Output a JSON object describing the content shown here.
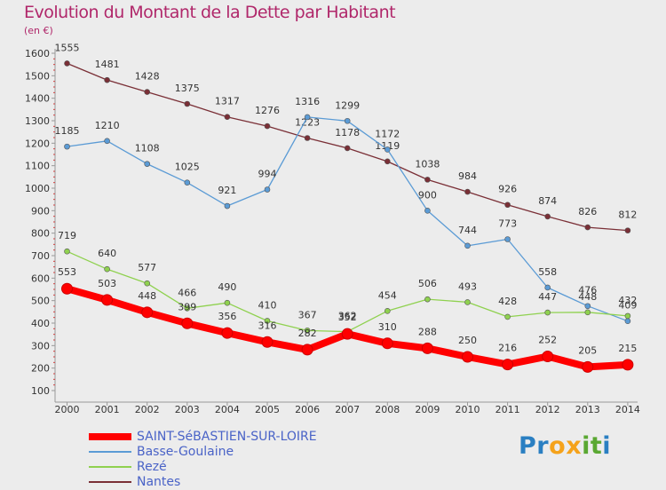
{
  "title": "Evolution du Montant de la Dette par Habitant",
  "unit_label": "(en €)",
  "logo": {
    "text": "Proxiti",
    "letters": [
      {
        "ch": "P",
        "color": "#2a7fc2"
      },
      {
        "ch": "r",
        "color": "#2a7fc2"
      },
      {
        "ch": "o",
        "color": "#f5a21a"
      },
      {
        "ch": "x",
        "color": "#f5a21a"
      },
      {
        "ch": "i",
        "color": "#5aa832"
      },
      {
        "ch": "t",
        "color": "#5aa832"
      },
      {
        "ch": "i",
        "color": "#2a7fc2"
      }
    ]
  },
  "chart_data": {
    "type": "line",
    "title": "Evolution du Montant de la Dette par Habitant",
    "ylabel": "(en €)",
    "xlabel": "",
    "x": [
      "2000",
      "2001",
      "2002",
      "2003",
      "2004",
      "2005",
      "2006",
      "2007",
      "2008",
      "2009",
      "2010",
      "2011",
      "2012",
      "2013",
      "2014"
    ],
    "ylim": [
      100,
      1600
    ],
    "yticks": [
      100,
      200,
      300,
      400,
      500,
      600,
      700,
      800,
      900,
      1000,
      1100,
      1200,
      1300,
      1400,
      1500,
      1600
    ],
    "grid": false,
    "legend_position": "bottom-left",
    "series": [
      {
        "name": "SAINT-SéBASTIEN-SUR-LOIRE",
        "color": "#ff0000",
        "values": [
          553,
          503,
          448,
          399,
          356,
          316,
          282,
          352,
          310,
          288,
          250,
          216,
          252,
          205,
          215
        ]
      },
      {
        "name": "Basse-Goulaine",
        "color": "#5b9bd5",
        "values": [
          1185,
          1210,
          1108,
          1025,
          921,
          994,
          1316,
          1299,
          1172,
          900,
          744,
          773,
          558,
          476,
          409
        ]
      },
      {
        "name": "Rezé",
        "color": "#8fd14f",
        "values": [
          719,
          640,
          577,
          466,
          490,
          410,
          367,
          362,
          454,
          506,
          493,
          428,
          447,
          448,
          432
        ]
      },
      {
        "name": "Nantes",
        "color": "#7a2f36",
        "values": [
          1555,
          1481,
          1428,
          1375,
          1317,
          1276,
          1223,
          1178,
          1119,
          1038,
          984,
          926,
          874,
          826,
          812
        ]
      }
    ]
  }
}
